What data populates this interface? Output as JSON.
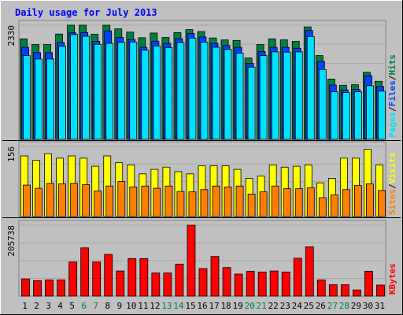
{
  "title": "Daily usage for July 2013",
  "colors": {
    "background": "#c0c0c0",
    "title": "#0000ff",
    "hits": "#008040",
    "files": "#0040ff",
    "pages": "#00e0ff",
    "visits": "#ffff00",
    "sites": "#ff8000",
    "kbytes": "#ff0000",
    "weekend_label": "#008040",
    "separator": "#000000"
  },
  "chart_data": [
    {
      "type": "bar",
      "panel": "top",
      "categories": [
        "1",
        "2",
        "3",
        "4",
        "5",
        "6",
        "7",
        "8",
        "9",
        "10",
        "11",
        "12",
        "13",
        "14",
        "15",
        "16",
        "17",
        "18",
        "19",
        "20",
        "21",
        "22",
        "23",
        "24",
        "25",
        "26",
        "27",
        "28",
        "29",
        "30",
        "31"
      ],
      "weekend_days": [
        "6",
        "7",
        "13",
        "14",
        "20",
        "21",
        "27",
        "28"
      ],
      "y_tick_label": "2330",
      "ymax": 2330,
      "legend": [
        "Pages",
        "/",
        "Files",
        "/",
        "Hits"
      ],
      "series": [
        {
          "name": "Hits",
          "values": [
            2050,
            1935,
            1935,
            2150,
            2330,
            2330,
            2145,
            2330,
            2255,
            2190,
            2075,
            2170,
            2080,
            2180,
            2240,
            2200,
            2070,
            2030,
            2020,
            1660,
            1935,
            2050,
            2030,
            2000,
            2295,
            1710,
            1230,
            1105,
            1115,
            1370,
            1185
          ]
        },
        {
          "name": "Files",
          "values": [
            1880,
            1770,
            1770,
            1980,
            2175,
            2180,
            2000,
            2215,
            2080,
            2040,
            1880,
            2005,
            1960,
            2055,
            2160,
            2090,
            1960,
            1915,
            1880,
            1550,
            1790,
            1880,
            1880,
            1860,
            2225,
            1590,
            1110,
            1010,
            1020,
            1300,
            1080
          ]
        },
        {
          "name": "Pages",
          "values": [
            1710,
            1640,
            1640,
            1900,
            2140,
            2105,
            1940,
            1960,
            1980,
            1985,
            1820,
            1905,
            1875,
            1975,
            2065,
            1985,
            1880,
            1835,
            1760,
            1475,
            1710,
            1785,
            1780,
            1785,
            2100,
            1425,
            970,
            955,
            970,
            1095,
            985
          ]
        }
      ]
    },
    {
      "type": "bar",
      "panel": "middle",
      "categories": [
        "1",
        "2",
        "3",
        "4",
        "5",
        "6",
        "7",
        "8",
        "9",
        "10",
        "11",
        "12",
        "13",
        "14",
        "15",
        "16",
        "17",
        "18",
        "19",
        "20",
        "21",
        "22",
        "23",
        "24",
        "25",
        "26",
        "27",
        "28",
        "29",
        "30",
        "31"
      ],
      "y_tick_label": "156",
      "ymax": 156,
      "legend": [
        "Sites",
        "/",
        "Visits"
      ],
      "series": [
        {
          "name": "Visits",
          "values": [
            135,
            125,
            140,
            130,
            135,
            130,
            112,
            135,
            120,
            115,
            95,
            105,
            110,
            100,
            95,
            113,
            113,
            113,
            105,
            85,
            90,
            115,
            110,
            112,
            115,
            75,
            85,
            130,
            130,
            150,
            115
          ]
        },
        {
          "name": "Sites",
          "values": [
            70,
            63,
            74,
            73,
            74,
            71,
            57,
            68,
            78,
            66,
            68,
            63,
            68,
            56,
            55,
            60,
            68,
            66,
            68,
            50,
            55,
            68,
            62,
            62,
            64,
            42,
            48,
            60,
            69,
            73,
            58
          ]
        }
      ]
    },
    {
      "type": "bar",
      "panel": "bottom",
      "categories": [
        "1",
        "2",
        "3",
        "4",
        "5",
        "6",
        "7",
        "8",
        "9",
        "10",
        "11",
        "12",
        "13",
        "14",
        "15",
        "16",
        "17",
        "18",
        "19",
        "20",
        "21",
        "22",
        "23",
        "24",
        "25",
        "26",
        "27",
        "28",
        "29",
        "30",
        "31"
      ],
      "y_tick_label": "205738",
      "ymax": 205738,
      "legend": [
        "KBytes"
      ],
      "series": [
        {
          "name": "KBytes",
          "values": [
            50000,
            45000,
            47000,
            47000,
            99000,
            140000,
            99000,
            121000,
            73000,
            109000,
            109000,
            67000,
            67000,
            93000,
            205738,
            80000,
            115000,
            83000,
            64000,
            72000,
            70000,
            73000,
            70000,
            110000,
            143000,
            47000,
            33000,
            33000,
            18000,
            72000,
            32000
          ]
        }
      ]
    }
  ]
}
